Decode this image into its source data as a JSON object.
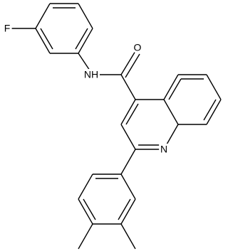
{
  "atoms": {
    "fluorine": "F",
    "oxygen": "O",
    "amide_nitrogen": "NH",
    "ring_nitrogen": "N"
  }
}
